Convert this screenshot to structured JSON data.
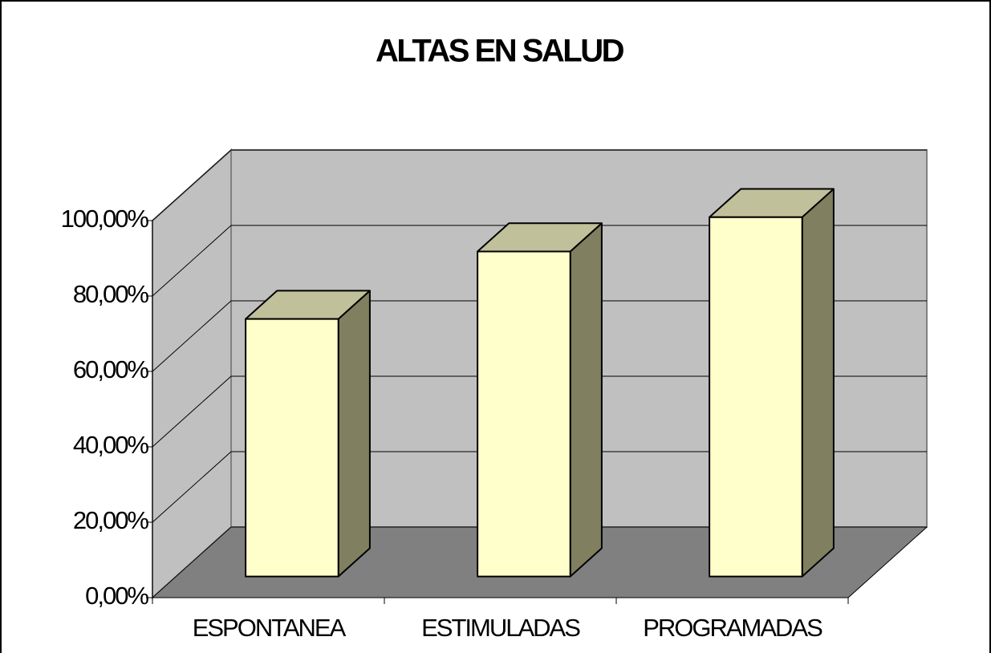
{
  "chart_data": {
    "type": "bar3d",
    "title": "ALTAS EN SALUD",
    "categories": [
      "ESPONTANEA",
      "ESTIMULADAS",
      "PROGRAMADAS"
    ],
    "values": [
      68.3,
      86.2,
      95.3
    ],
    "color": "#ffffcc",
    "ylim": [
      0,
      100
    ],
    "yticks": [
      {
        "value": 0,
        "label": "0,00%"
      },
      {
        "value": 20,
        "label": "20,00%"
      },
      {
        "value": 40,
        "label": "40,00%"
      },
      {
        "value": 60,
        "label": "60,00%"
      },
      {
        "value": 80,
        "label": "80,00%"
      },
      {
        "value": 100,
        "label": "100,00%"
      }
    ],
    "grid": true
  }
}
